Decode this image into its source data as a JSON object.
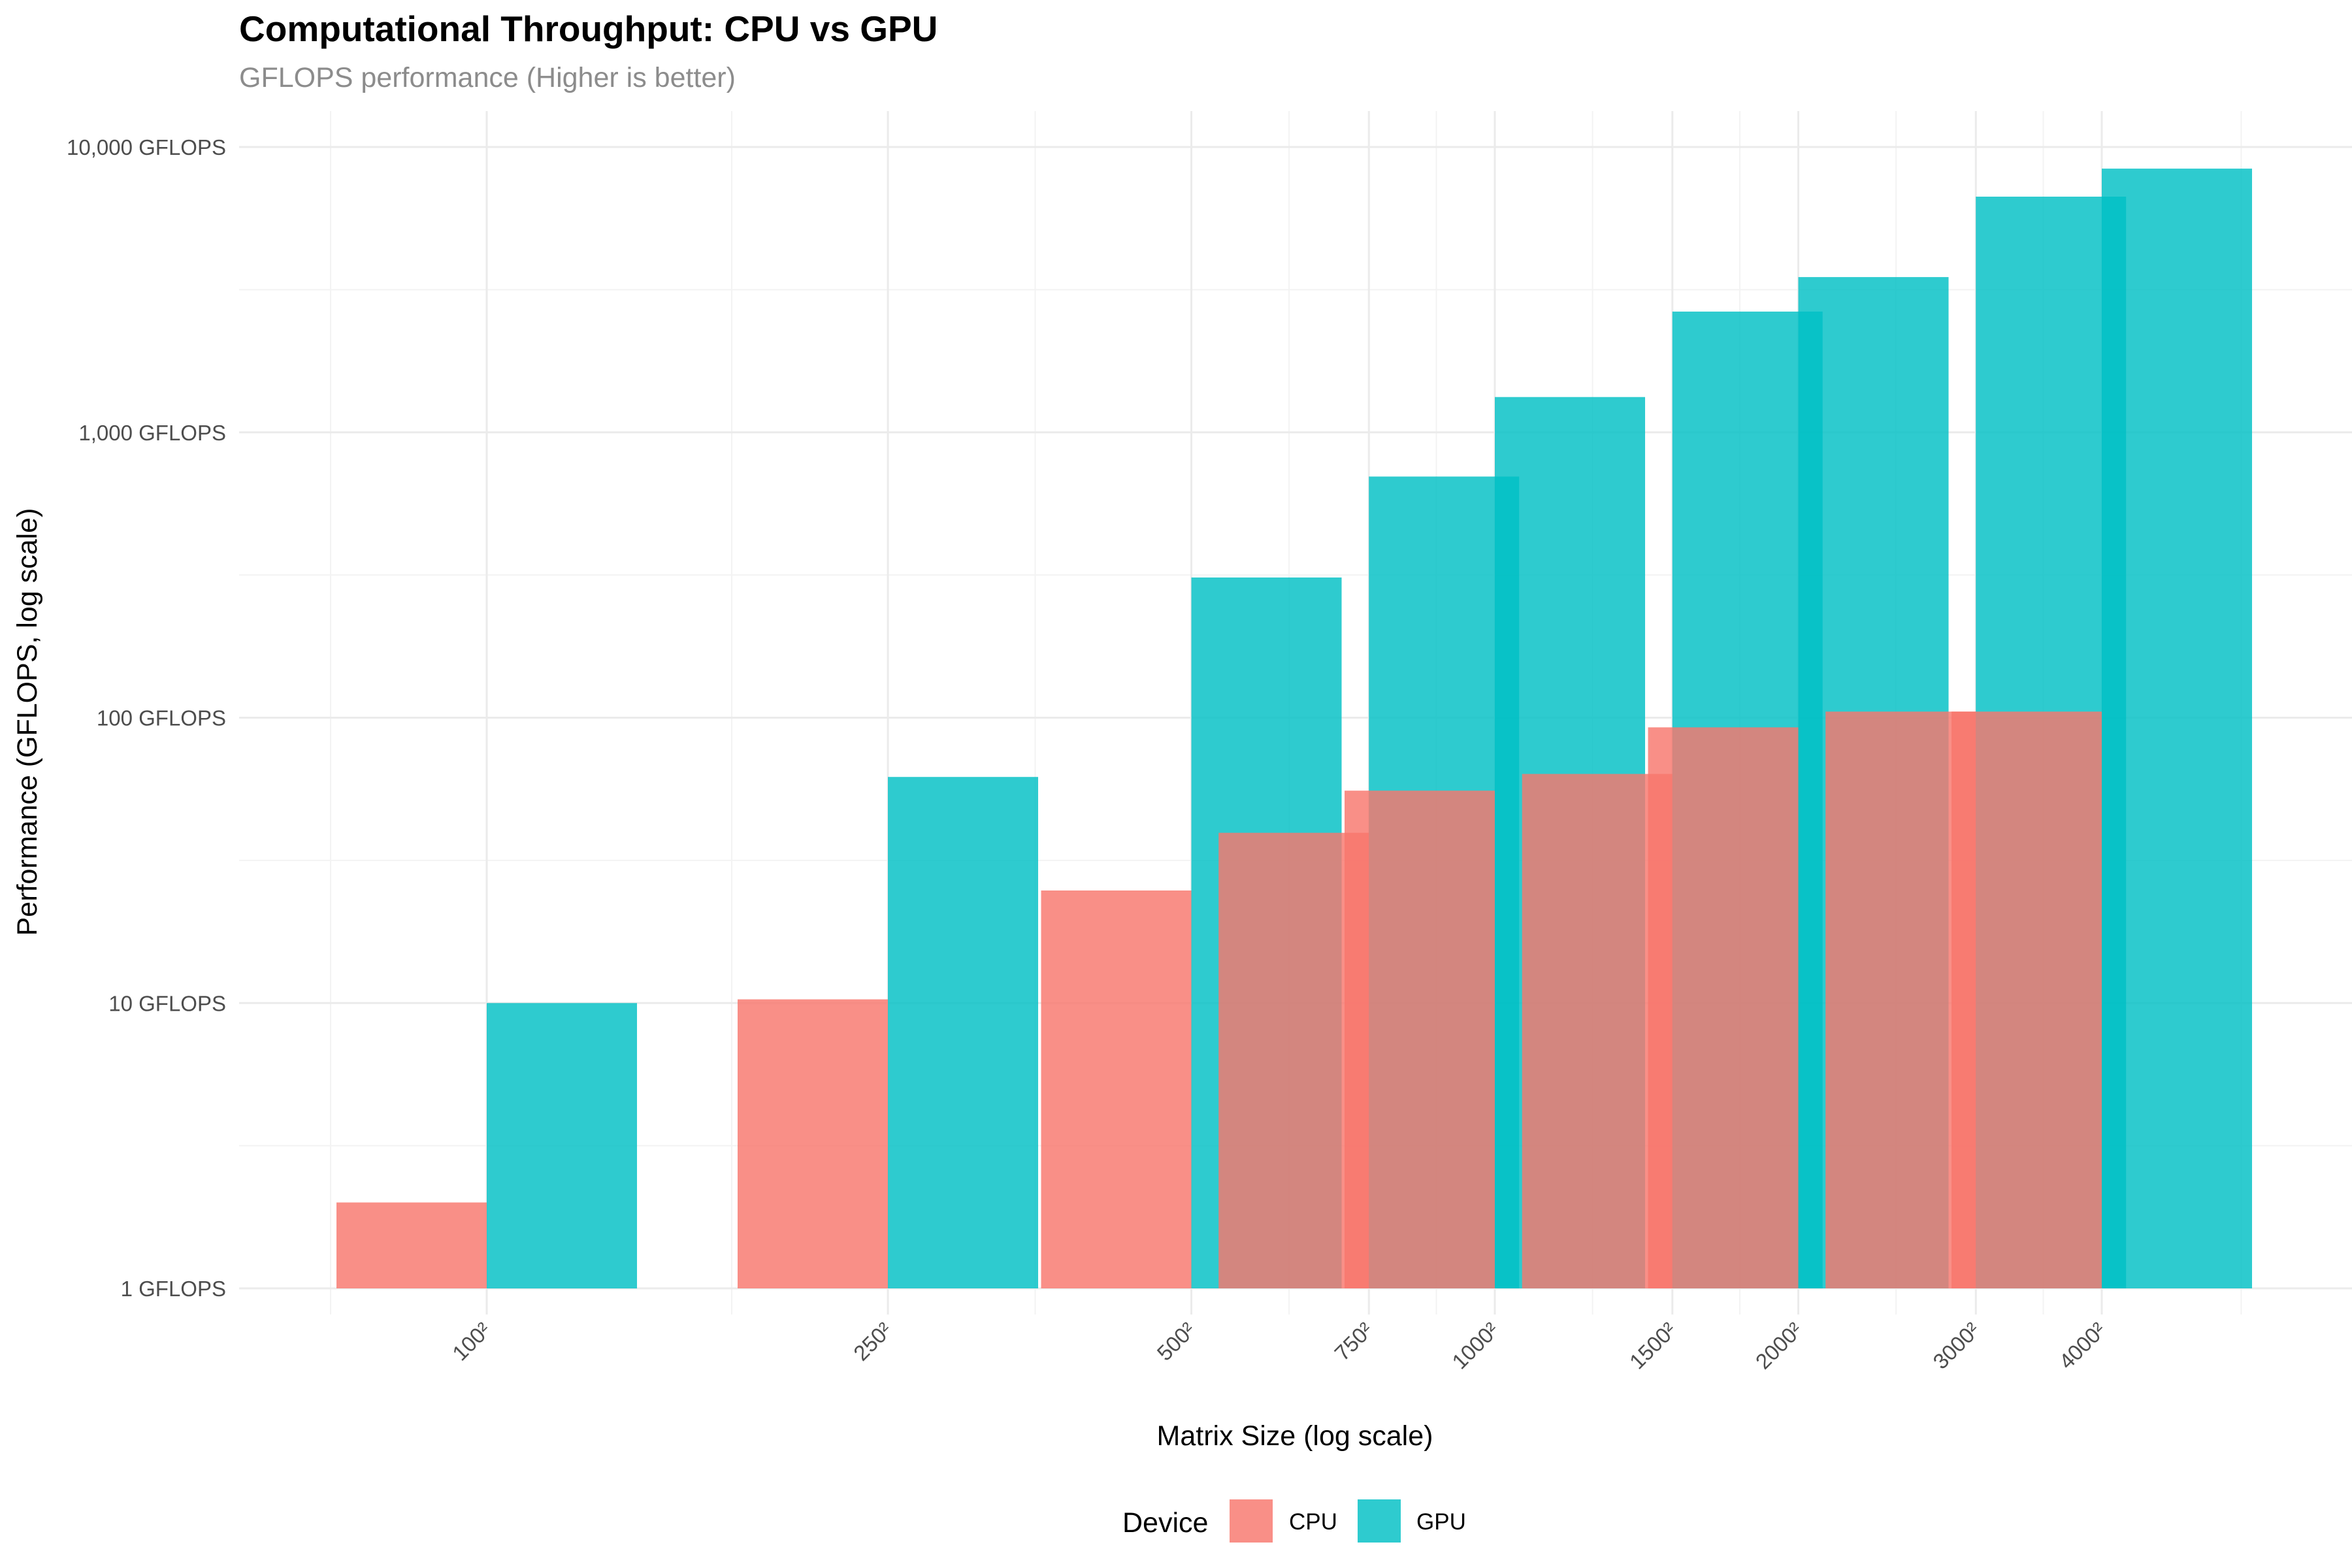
{
  "chart_data": {
    "type": "bar",
    "title": "Computational Throughput: CPU vs GPU",
    "subtitle": "GFLOPS performance (Higher is better)",
    "xlabel": "Matrix Size (log scale)",
    "ylabel": "Performance (GFLOPS, log scale)",
    "x_scale": "log",
    "y_scale": "log",
    "ylim": [
      1,
      10000
    ],
    "y_ticks": [
      {
        "value": 1,
        "label": "1 GFLOPS"
      },
      {
        "value": 10,
        "label": "10 GFLOPS"
      },
      {
        "value": 100,
        "label": "100 GFLOPS"
      },
      {
        "value": 1000,
        "label": "1,000 GFLOPS"
      },
      {
        "value": 10000,
        "label": "10,000 GFLOPS"
      }
    ],
    "x_ticks": [
      {
        "value": 100,
        "label": "100²"
      },
      {
        "value": 250,
        "label": "250²"
      },
      {
        "value": 500,
        "label": "500²"
      },
      {
        "value": 750,
        "label": "750²"
      },
      {
        "value": 1000,
        "label": "1000²"
      },
      {
        "value": 1500,
        "label": "1500²"
      },
      {
        "value": 2000,
        "label": "2000²"
      },
      {
        "value": 3000,
        "label": "3000²"
      },
      {
        "value": 4000,
        "label": "4000²"
      }
    ],
    "categories": [
      100,
      250,
      500,
      750,
      1000,
      1500,
      2000,
      3000,
      4000
    ],
    "series": [
      {
        "name": "CPU",
        "color": "#F8766D",
        "values": [
          2.0,
          10.3,
          24.8,
          39.5,
          55.5,
          63.5,
          92.5,
          105.0,
          105.0
        ]
      },
      {
        "name": "GPU",
        "color": "#00BFC4",
        "values": [
          10.0,
          62.0,
          310.0,
          700.0,
          1330.0,
          2650.0,
          3500.0,
          6700.0,
          8400.0
        ]
      }
    ],
    "grid": true,
    "legend": {
      "title": "Device",
      "position": "bottom"
    }
  }
}
